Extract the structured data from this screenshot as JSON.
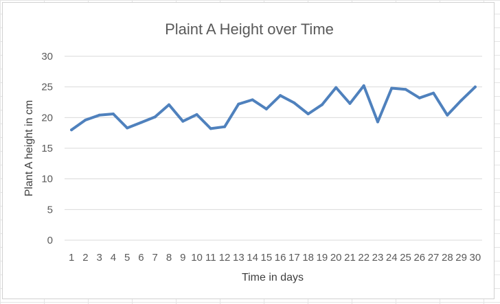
{
  "chart_data": {
    "type": "line",
    "title": "Plaint A Height over Time",
    "xlabel": "Time in days",
    "ylabel": "Plant A height in cm",
    "categories": [
      "1",
      "2",
      "3",
      "4",
      "5",
      "6",
      "7",
      "8",
      "9",
      "10",
      "11",
      "12",
      "13",
      "14",
      "15",
      "16",
      "17",
      "18",
      "19",
      "20",
      "21",
      "22",
      "23",
      "24",
      "25",
      "26",
      "27",
      "28",
      "29",
      "30"
    ],
    "series": [
      {
        "values": [
          18.0,
          19.6,
          20.4,
          20.6,
          18.3,
          19.2,
          20.1,
          22.1,
          19.4,
          20.5,
          18.2,
          18.5,
          22.2,
          22.9,
          21.4,
          23.6,
          22.4,
          20.6,
          22.1,
          24.9,
          22.3,
          25.2,
          19.3,
          24.8,
          24.6,
          23.2,
          24.0,
          20.4,
          22.8,
          25.0
        ]
      }
    ],
    "ylim": [
      0,
      30
    ],
    "yticks": [
      0,
      5,
      10,
      15,
      20,
      25,
      30
    ],
    "grid": true,
    "legend": "none",
    "line_color": "#4f81bd",
    "grid_color": "#d9d9d9",
    "text_color": "#595959"
  }
}
